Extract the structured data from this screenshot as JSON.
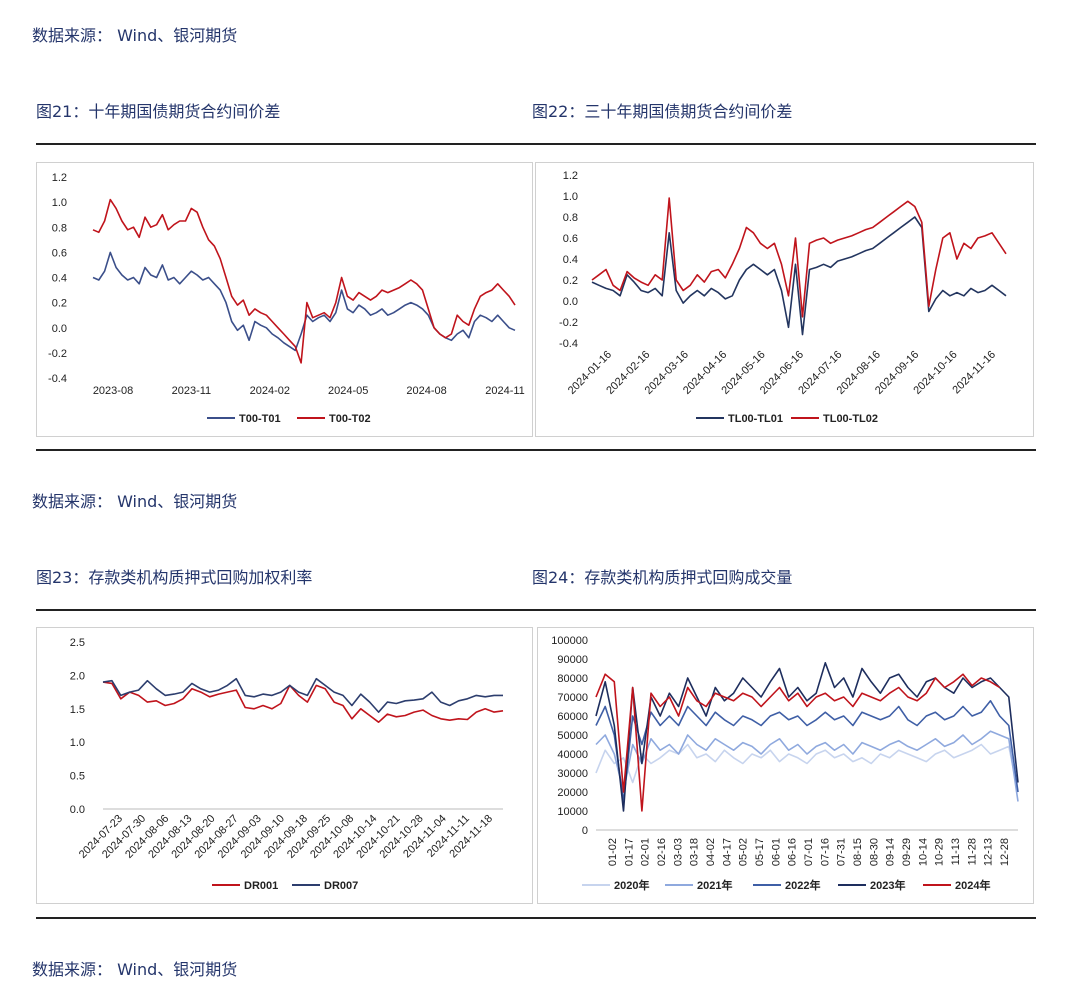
{
  "sources": [
    "数据来源： Wind、银河期货",
    "数据来源： Wind、银河期货",
    "数据来源： Wind、银河期货"
  ],
  "figure_titles": [
    "图21：十年期国债期货合约间价差",
    "图22：三十年期国债期货合约间价差",
    "图23：存款类机构质押式回购加权利率",
    "图24：存款类机构质押式回购成交量"
  ],
  "chart_data": [
    {
      "type": "line",
      "y_ticks": [
        "1.2",
        "1.0",
        "0.8",
        "0.6",
        "0.4",
        "0.2",
        "0.0",
        "-0.2",
        "-0.4"
      ],
      "ylim": [
        -0.4,
        1.2
      ],
      "x_ticks": [
        "2023-08",
        "2023-11",
        "2024-02",
        "2024-05",
        "2024-08",
        "2024-11"
      ],
      "series": [
        {
          "name": "T00-T01",
          "color": "#3b4f8a",
          "values": [
            0.4,
            0.38,
            0.45,
            0.6,
            0.48,
            0.42,
            0.38,
            0.4,
            0.35,
            0.48,
            0.42,
            0.4,
            0.5,
            0.38,
            0.4,
            0.35,
            0.4,
            0.45,
            0.42,
            0.38,
            0.4,
            0.35,
            0.3,
            0.2,
            0.05,
            -0.02,
            0.02,
            -0.1,
            0.05,
            0.02,
            0.0,
            -0.05,
            -0.08,
            -0.12,
            -0.15,
            -0.18,
            -0.05,
            0.1,
            0.05,
            0.08,
            0.1,
            0.05,
            0.12,
            0.3,
            0.15,
            0.12,
            0.18,
            0.15,
            0.1,
            0.12,
            0.15,
            0.1,
            0.12,
            0.15,
            0.18,
            0.2,
            0.18,
            0.15,
            0.1,
            0.0,
            -0.05,
            -0.08,
            -0.1,
            -0.05,
            -0.02,
            -0.08,
            0.05,
            0.1,
            0.08,
            0.05,
            0.1,
            0.05,
            0.0,
            -0.02
          ]
        },
        {
          "name": "T00-T02",
          "color": "#c0141c",
          "values": [
            0.78,
            0.76,
            0.85,
            1.02,
            0.95,
            0.85,
            0.78,
            0.8,
            0.72,
            0.88,
            0.8,
            0.82,
            0.9,
            0.78,
            0.82,
            0.85,
            0.85,
            0.95,
            0.92,
            0.8,
            0.7,
            0.65,
            0.55,
            0.4,
            0.25,
            0.18,
            0.22,
            0.1,
            0.15,
            0.12,
            0.1,
            0.05,
            0.0,
            -0.05,
            -0.1,
            -0.15,
            -0.28,
            0.2,
            0.08,
            0.1,
            0.12,
            0.08,
            0.2,
            0.4,
            0.25,
            0.22,
            0.28,
            0.25,
            0.22,
            0.25,
            0.3,
            0.28,
            0.3,
            0.32,
            0.35,
            0.38,
            0.35,
            0.3,
            0.15,
            0.0,
            -0.05,
            -0.08,
            -0.05,
            0.1,
            0.05,
            0.02,
            0.15,
            0.25,
            0.28,
            0.3,
            0.35,
            0.3,
            0.25,
            0.18
          ]
        }
      ],
      "legend": "bottom"
    },
    {
      "type": "line",
      "y_ticks": [
        "1.2",
        "1.0",
        "0.8",
        "0.6",
        "0.4",
        "0.2",
        "0.0",
        "-0.2",
        "-0.4"
      ],
      "ylim": [
        -0.4,
        1.2
      ],
      "x_ticks": [
        "2024-01-16",
        "2024-02-16",
        "2024-03-16",
        "2024-04-16",
        "2024-05-16",
        "2024-06-16",
        "2024-07-16",
        "2024-08-16",
        "2024-09-16",
        "2024-10-16",
        "2024-11-16"
      ],
      "series": [
        {
          "name": "TL00-TL01",
          "color": "#23355f",
          "values": [
            0.18,
            0.15,
            0.12,
            0.1,
            0.05,
            0.25,
            0.18,
            0.1,
            0.08,
            0.12,
            0.05,
            0.65,
            0.1,
            -0.02,
            0.05,
            0.1,
            0.05,
            0.12,
            0.08,
            0.02,
            0.05,
            0.2,
            0.3,
            0.35,
            0.3,
            0.25,
            0.3,
            0.1,
            -0.25,
            0.35,
            -0.32,
            0.3,
            0.32,
            0.35,
            0.32,
            0.38,
            0.4,
            0.42,
            0.45,
            0.48,
            0.5,
            0.55,
            0.6,
            0.65,
            0.7,
            0.75,
            0.8,
            0.7,
            -0.1,
            0.02,
            0.1,
            0.05,
            0.08,
            0.05,
            0.12,
            0.08,
            0.1,
            0.15,
            0.1,
            0.05
          ]
        },
        {
          "name": "TL00-TL02",
          "color": "#c0141c",
          "values": [
            0.2,
            0.25,
            0.3,
            0.15,
            0.1,
            0.28,
            0.22,
            0.18,
            0.15,
            0.25,
            0.2,
            0.98,
            0.2,
            0.1,
            0.15,
            0.25,
            0.18,
            0.28,
            0.3,
            0.22,
            0.35,
            0.5,
            0.7,
            0.65,
            0.55,
            0.5,
            0.55,
            0.35,
            0.05,
            0.6,
            -0.15,
            0.55,
            0.58,
            0.6,
            0.55,
            0.58,
            0.6,
            0.62,
            0.65,
            0.68,
            0.7,
            0.75,
            0.8,
            0.85,
            0.9,
            0.95,
            0.9,
            0.75,
            -0.05,
            0.3,
            0.6,
            0.65,
            0.4,
            0.55,
            0.5,
            0.6,
            0.62,
            0.65,
            0.55,
            0.45
          ]
        }
      ],
      "legend": "bottom"
    },
    {
      "type": "line",
      "y_ticks": [
        "2.5",
        "2.0",
        "1.5",
        "1.0",
        "0.5",
        "0.0"
      ],
      "ylim": [
        0,
        2.5
      ],
      "x_ticks": [
        "2024-07-23",
        "2024-07-30",
        "2024-08-06",
        "2024-08-13",
        "2024-08-20",
        "2024-08-27",
        "2024-09-03",
        "2024-09-10",
        "2024-09-18",
        "2024-09-25",
        "2024-10-08",
        "2024-10-14",
        "2024-10-21",
        "2024-10-28",
        "2024-11-04",
        "2024-11-11",
        "2024-11-18"
      ],
      "series": [
        {
          "name": "DR001",
          "color": "#c0141c",
          "values": [
            1.9,
            1.88,
            1.65,
            1.75,
            1.7,
            1.6,
            1.62,
            1.55,
            1.58,
            1.65,
            1.8,
            1.75,
            1.68,
            1.72,
            1.75,
            1.78,
            1.52,
            1.5,
            1.55,
            1.5,
            1.58,
            1.85,
            1.7,
            1.6,
            1.85,
            1.8,
            1.6,
            1.55,
            1.35,
            1.5,
            1.4,
            1.3,
            1.42,
            1.38,
            1.4,
            1.45,
            1.48,
            1.4,
            1.35,
            1.33,
            1.35,
            1.34,
            1.45,
            1.5,
            1.45,
            1.47
          ]
        },
        {
          "name": "DR007",
          "color": "#2d3e6e",
          "values": [
            1.9,
            1.92,
            1.7,
            1.75,
            1.78,
            1.92,
            1.8,
            1.7,
            1.72,
            1.75,
            1.88,
            1.8,
            1.75,
            1.78,
            1.85,
            1.95,
            1.7,
            1.68,
            1.72,
            1.7,
            1.75,
            1.85,
            1.75,
            1.7,
            1.95,
            1.85,
            1.75,
            1.7,
            1.55,
            1.72,
            1.6,
            1.45,
            1.6,
            1.58,
            1.62,
            1.63,
            1.65,
            1.75,
            1.6,
            1.55,
            1.62,
            1.65,
            1.7,
            1.68,
            1.7,
            1.7
          ]
        }
      ],
      "legend": "bottom"
    },
    {
      "type": "line",
      "y_ticks": [
        "100000",
        "90000",
        "80000",
        "70000",
        "60000",
        "50000",
        "40000",
        "30000",
        "20000",
        "10000",
        "0"
      ],
      "ylim": [
        0,
        100000
      ],
      "x_ticks": [
        "01-02",
        "01-17",
        "02-01",
        "02-16",
        "03-03",
        "03-18",
        "04-02",
        "04-17",
        "05-02",
        "05-17",
        "06-01",
        "06-16",
        "07-01",
        "07-16",
        "07-31",
        "08-15",
        "08-30",
        "09-14",
        "09-29",
        "10-14",
        "10-29",
        "11-13",
        "11-28",
        "12-13",
        "12-28"
      ],
      "series": [
        {
          "name": "2020年",
          "color": "#c7d4ee",
          "values": [
            30000,
            42000,
            35000,
            38000,
            25000,
            40000,
            35000,
            38000,
            42000,
            40000,
            45000,
            38000,
            40000,
            36000,
            42000,
            38000,
            35000,
            40000,
            38000,
            42000,
            36000,
            40000,
            38000,
            35000,
            40000,
            42000,
            38000,
            40000,
            36000,
            38000,
            35000,
            40000,
            38000,
            42000,
            40000,
            38000,
            36000,
            40000,
            42000,
            38000,
            40000,
            42000,
            45000,
            40000,
            42000,
            44000,
            20000
          ]
        },
        {
          "name": "2021年",
          "color": "#8fa9de",
          "values": [
            45000,
            50000,
            40000,
            20000,
            45000,
            35000,
            48000,
            42000,
            45000,
            40000,
            50000,
            45000,
            42000,
            48000,
            45000,
            42000,
            46000,
            44000,
            40000,
            45000,
            48000,
            42000,
            45000,
            40000,
            44000,
            46000,
            42000,
            45000,
            40000,
            46000,
            44000,
            42000,
            45000,
            47000,
            44000,
            42000,
            45000,
            48000,
            44000,
            46000,
            50000,
            45000,
            48000,
            52000,
            50000,
            48000,
            15000
          ]
        },
        {
          "name": "2022年",
          "color": "#3f5fa6",
          "values": [
            55000,
            65000,
            50000,
            15000,
            60000,
            45000,
            62000,
            55000,
            60000,
            55000,
            65000,
            60000,
            55000,
            62000,
            58000,
            55000,
            60000,
            58000,
            55000,
            60000,
            62000,
            58000,
            60000,
            55000,
            58000,
            62000,
            58000,
            60000,
            55000,
            62000,
            60000,
            58000,
            60000,
            65000,
            58000,
            55000,
            60000,
            62000,
            58000,
            60000,
            65000,
            60000,
            62000,
            68000,
            60000,
            55000,
            20000
          ]
        },
        {
          "name": "2023年",
          "color": "#1e2e5e",
          "values": [
            60000,
            78000,
            55000,
            10000,
            75000,
            35000,
            70000,
            60000,
            72000,
            65000,
            80000,
            70000,
            60000,
            75000,
            68000,
            72000,
            80000,
            75000,
            70000,
            78000,
            85000,
            70000,
            75000,
            68000,
            72000,
            88000,
            75000,
            80000,
            70000,
            85000,
            78000,
            72000,
            80000,
            82000,
            75000,
            70000,
            78000,
            80000,
            75000,
            72000,
            80000,
            75000,
            78000,
            80000,
            75000,
            70000,
            25000
          ]
        },
        {
          "name": "2024年",
          "color": "#c0141c",
          "values": [
            70000,
            82000,
            78000,
            20000,
            75000,
            10000,
            72000,
            65000,
            70000,
            60000,
            75000,
            68000,
            65000,
            72000,
            70000,
            68000,
            72000,
            70000,
            65000,
            70000,
            75000,
            68000,
            72000,
            65000,
            70000,
            72000,
            68000,
            70000,
            65000,
            72000,
            70000,
            68000,
            72000,
            75000,
            70000,
            68000,
            72000,
            80000,
            75000,
            78000,
            82000,
            76000,
            80000,
            78000,
            75000,
            null,
            null
          ]
        }
      ],
      "legend": "bottom"
    }
  ]
}
